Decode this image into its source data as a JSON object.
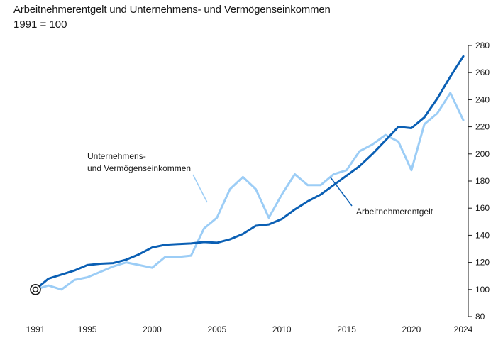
{
  "chart_data": {
    "type": "line",
    "title": "Arbeitnehmerentgelt und Unternehmens- und Vermögenseinkommen",
    "subtitle": "1991 = 100",
    "x": [
      1991,
      1992,
      1993,
      1994,
      1995,
      1996,
      1997,
      1998,
      1999,
      2000,
      2001,
      2002,
      2003,
      2004,
      2005,
      2006,
      2007,
      2008,
      2009,
      2010,
      2011,
      2012,
      2013,
      2014,
      2015,
      2016,
      2017,
      2018,
      2019,
      2020,
      2021,
      2022,
      2023,
      2024
    ],
    "x_ticks": [
      "1991",
      "1995",
      "2000",
      "2005",
      "2010",
      "2015",
      "2020",
      "2024"
    ],
    "y_ticks": [
      "80",
      "100",
      "120",
      "140",
      "160",
      "180",
      "200",
      "220",
      "240",
      "260",
      "280"
    ],
    "ylim": [
      80,
      280
    ],
    "series": [
      {
        "name": "Arbeitnehmerentgelt",
        "color": "#0a5fb4",
        "values": [
          100,
          108,
          111,
          114,
          118,
          119,
          119.5,
          122,
          126,
          131,
          133,
          133.5,
          134,
          135,
          134.5,
          137,
          141,
          147,
          148,
          152,
          159,
          165,
          170,
          177,
          184,
          191,
          200,
          210,
          220,
          219,
          227,
          241,
          257,
          272
        ]
      },
      {
        "name": "Unternehmens- und Vermögenseinkommen",
        "color": "#9ccdf6",
        "values": [
          100,
          103,
          100,
          107,
          109,
          113,
          117,
          120,
          118,
          116,
          124,
          124,
          125,
          145,
          153,
          174,
          183,
          174,
          153,
          170,
          185,
          177,
          177,
          185,
          188,
          202,
          207,
          214,
          209,
          188,
          222,
          230,
          245,
          225
        ]
      }
    ],
    "labels": {
      "employee": "Arbeitnehmerentgelt",
      "enterprise_line1": "Unternehmens-",
      "enterprise_line2": "und Vermögenseinkommen"
    }
  }
}
